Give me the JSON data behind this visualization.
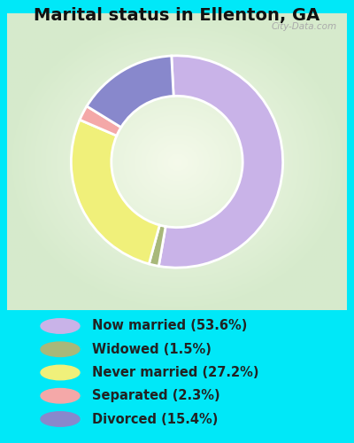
{
  "title": "Marital status in Ellenton, GA",
  "title_fontsize": 14,
  "title_color": "#111111",
  "background_outer": "#00e8f8",
  "categories": [
    "Now married",
    "Widowed",
    "Never married",
    "Separated",
    "Divorced"
  ],
  "values": [
    53.6,
    1.5,
    27.2,
    2.3,
    15.4
  ],
  "colors": [
    "#c9b3e8",
    "#a8b87a",
    "#f0f07a",
    "#f4a8a8",
    "#8888cc"
  ],
  "legend_labels": [
    "Now married (53.6%)",
    "Widowed (1.5%)",
    "Never married (27.2%)",
    "Separated (2.3%)",
    "Divorced (15.4%)"
  ],
  "legend_colors": [
    "#c9b3e8",
    "#a8b87a",
    "#f0f07a",
    "#f4a8a8",
    "#8888cc"
  ],
  "legend_fontsize": 10.5,
  "legend_text_color": "#222222",
  "donut_width": 0.38,
  "wedge_order": [
    0,
    1,
    2,
    3,
    4
  ],
  "start_angle": 93,
  "watermark": "City-Data.com"
}
